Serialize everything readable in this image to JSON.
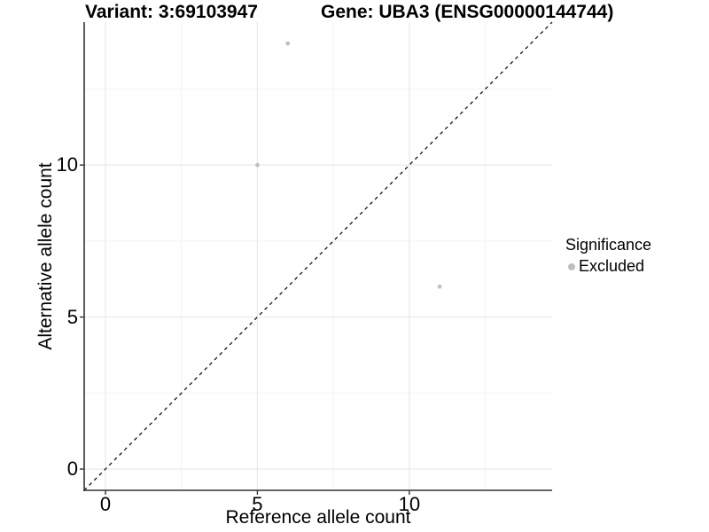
{
  "titles": {
    "variant": "Variant: 3:69103947",
    "gene": "Gene: UBA3 (ENSG00000144744)"
  },
  "legend": {
    "title": "Significance",
    "items": [
      {
        "label": "Excluded",
        "color": "#bebebe"
      }
    ]
  },
  "chart_data": {
    "type": "scatter",
    "xlabel": "Reference allele count",
    "ylabel": "Alternative allele count",
    "xlim": [
      -0.7,
      14.7
    ],
    "ylim": [
      -0.7,
      14.7
    ],
    "x_ticks": [
      0,
      5,
      10
    ],
    "y_ticks": [
      0,
      5,
      10
    ],
    "x_minor_ticks": [
      2.5,
      7.5,
      12.5
    ],
    "y_minor_ticks": [
      2.5,
      7.5,
      12.5
    ],
    "grid": true,
    "legend_position": "right",
    "identity_line": {
      "style": "dashed",
      "color": "#000000",
      "slope": 1,
      "intercept": 0
    },
    "series": [
      {
        "name": "Excluded",
        "color": "#c0c0c0",
        "points": [
          [
            5,
            10
          ],
          [
            6,
            14
          ],
          [
            11,
            6
          ]
        ]
      }
    ],
    "colors": {
      "major_grid": "#e9e9e9",
      "minor_grid": "#f3f3f3",
      "axis_line": "#333333"
    }
  }
}
